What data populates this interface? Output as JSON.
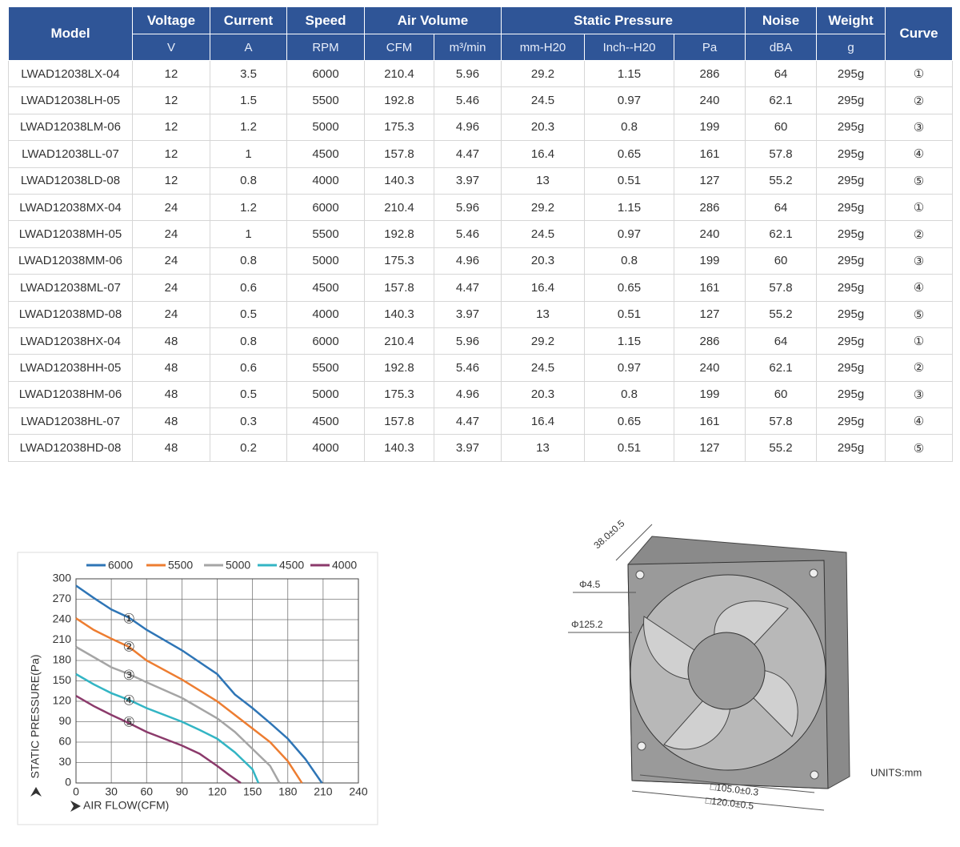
{
  "table": {
    "groups": [
      "Model",
      "Voltage",
      "Current",
      "Speed",
      "Air Volume",
      "Static Pressure",
      "Noise",
      "Weight",
      "Curve"
    ],
    "units": [
      "V",
      "A",
      "RPM",
      "CFM",
      "m³/min",
      "mm-H20",
      "Inch--H20",
      "Pa",
      "dBA",
      "g"
    ],
    "rows": [
      [
        "LWAD12038LX-04",
        12,
        3.5,
        6000,
        210.4,
        5.96,
        29.2,
        1.15,
        286,
        64,
        "295g",
        "①"
      ],
      [
        "LWAD12038LH-05",
        12,
        1.5,
        5500,
        192.8,
        5.46,
        24.5,
        0.97,
        240,
        62.1,
        "295g",
        "②"
      ],
      [
        "LWAD12038LM-06",
        12,
        1.2,
        5000,
        175.3,
        4.96,
        20.3,
        0.8,
        199,
        60,
        "295g",
        "③"
      ],
      [
        "LWAD12038LL-07",
        12,
        1,
        4500,
        157.8,
        4.47,
        16.4,
        0.65,
        161,
        57.8,
        "295g",
        "④"
      ],
      [
        "LWAD12038LD-08",
        12,
        0.8,
        4000,
        140.3,
        3.97,
        13,
        0.51,
        127,
        55.2,
        "295g",
        "⑤"
      ],
      [
        "LWAD12038MX-04",
        24,
        1.2,
        6000,
        210.4,
        5.96,
        29.2,
        1.15,
        286,
        64,
        "295g",
        "①"
      ],
      [
        "LWAD12038MH-05",
        24,
        1,
        5500,
        192.8,
        5.46,
        24.5,
        0.97,
        240,
        62.1,
        "295g",
        "②"
      ],
      [
        "LWAD12038MM-06",
        24,
        0.8,
        5000,
        175.3,
        4.96,
        20.3,
        0.8,
        199,
        60,
        "295g",
        "③"
      ],
      [
        "LWAD12038ML-07",
        24,
        0.6,
        4500,
        157.8,
        4.47,
        16.4,
        0.65,
        161,
        57.8,
        "295g",
        "④"
      ],
      [
        "LWAD12038MD-08",
        24,
        0.5,
        4000,
        140.3,
        3.97,
        13,
        0.51,
        127,
        55.2,
        "295g",
        "⑤"
      ],
      [
        "LWAD12038HX-04",
        48,
        0.8,
        6000,
        210.4,
        5.96,
        29.2,
        1.15,
        286,
        64,
        "295g",
        "①"
      ],
      [
        "LWAD12038HH-05",
        48,
        0.6,
        5500,
        192.8,
        5.46,
        24.5,
        0.97,
        240,
        62.1,
        "295g",
        "②"
      ],
      [
        "LWAD12038HM-06",
        48,
        0.5,
        5000,
        175.3,
        4.96,
        20.3,
        0.8,
        199,
        60,
        "295g",
        "③"
      ],
      [
        "LWAD12038HL-07",
        48,
        0.3,
        4500,
        157.8,
        4.47,
        16.4,
        0.65,
        161,
        57.8,
        "295g",
        "④"
      ],
      [
        "LWAD12038HD-08",
        48,
        0.2,
        4000,
        140.3,
        3.97,
        13,
        0.51,
        127,
        55.2,
        "295g",
        "⑤"
      ]
    ]
  },
  "chart_data": {
    "type": "line",
    "y_label": "STATIC PRESSURE(Pa)",
    "x_label": "AIR FLOW(CFM)",
    "xlim": [
      0,
      240
    ],
    "xticks": [
      0,
      30,
      60,
      90,
      120,
      150,
      180,
      210,
      240
    ],
    "ylim": [
      0,
      300
    ],
    "yticks": [
      0,
      30,
      60,
      90,
      120,
      150,
      180,
      210,
      240,
      270,
      300
    ],
    "grid": true,
    "series": [
      {
        "name": "6000",
        "color": "#2e75b6",
        "x": [
          0,
          15,
          30,
          45,
          60,
          90,
          120,
          135,
          150,
          165,
          180,
          195,
          209
        ],
        "values": [
          290,
          272,
          255,
          243,
          225,
          195,
          160,
          130,
          110,
          88,
          65,
          35,
          0
        ]
      },
      {
        "name": "5500",
        "color": "#ed7d31",
        "x": [
          0,
          15,
          30,
          45,
          60,
          90,
          120,
          135,
          150,
          165,
          180,
          192
        ],
        "values": [
          242,
          225,
          212,
          200,
          180,
          152,
          120,
          100,
          80,
          60,
          32,
          0
        ]
      },
      {
        "name": "5000",
        "color": "#a5a5a5",
        "x": [
          0,
          15,
          30,
          45,
          60,
          90,
          105,
          120,
          135,
          150,
          165,
          173
        ],
        "values": [
          200,
          185,
          170,
          160,
          148,
          125,
          110,
          95,
          75,
          50,
          25,
          0
        ]
      },
      {
        "name": "4500",
        "color": "#33b5c4",
        "x": [
          0,
          15,
          30,
          45,
          60,
          90,
          105,
          120,
          135,
          150,
          155
        ],
        "values": [
          160,
          145,
          132,
          122,
          110,
          90,
          78,
          65,
          45,
          20,
          0
        ]
      },
      {
        "name": "4000",
        "color": "#8b3a6b",
        "x": [
          0,
          15,
          30,
          45,
          60,
          90,
          105,
          120,
          130,
          140
        ],
        "values": [
          128,
          113,
          100,
          88,
          75,
          55,
          43,
          25,
          12,
          0
        ]
      }
    ],
    "annotations": [
      {
        "text": "①",
        "x": 45,
        "y": 240
      },
      {
        "text": "②",
        "x": 45,
        "y": 199
      },
      {
        "text": "③",
        "x": 45,
        "y": 157
      },
      {
        "text": "④",
        "x": 45,
        "y": 120
      },
      {
        "text": "⑤",
        "x": 45,
        "y": 88
      }
    ]
  },
  "drawing": {
    "labels": [
      "38.0±0.5",
      "Φ4.5",
      "Φ125.2",
      "□105.0±0.3",
      "□120.0±0.5",
      "UNITS:mm"
    ]
  }
}
